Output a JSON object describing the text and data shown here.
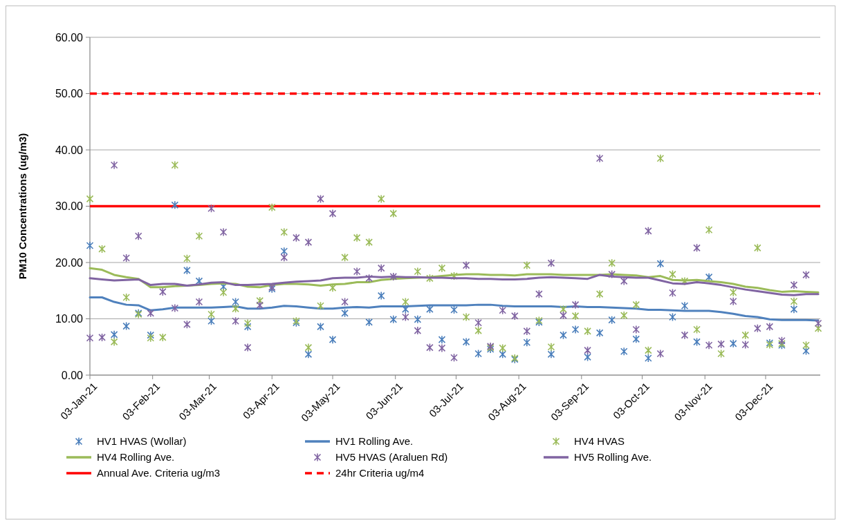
{
  "chart_data": {
    "type": "scatter",
    "ylabel": "PM10 Concentrations (ug/m3)",
    "x": [
      "2021-01-03",
      "2021-01-09",
      "2021-01-15",
      "2021-01-21",
      "2021-01-27",
      "2021-02-02",
      "2021-02-08",
      "2021-02-14",
      "2021-02-20",
      "2021-02-26",
      "2021-03-04",
      "2021-03-10",
      "2021-03-16",
      "2021-03-22",
      "2021-03-28",
      "2021-04-03",
      "2021-04-09",
      "2021-04-15",
      "2021-04-21",
      "2021-04-27",
      "2021-05-03",
      "2021-05-09",
      "2021-05-15",
      "2021-05-21",
      "2021-05-27",
      "2021-06-02",
      "2021-06-08",
      "2021-06-14",
      "2021-06-20",
      "2021-06-26",
      "2021-07-02",
      "2021-07-08",
      "2021-07-14",
      "2021-07-20",
      "2021-07-26",
      "2021-08-01",
      "2021-08-07",
      "2021-08-13",
      "2021-08-19",
      "2021-08-25",
      "2021-08-31",
      "2021-09-06",
      "2021-09-12",
      "2021-09-18",
      "2021-09-24",
      "2021-09-30",
      "2021-10-06",
      "2021-10-12",
      "2021-10-18",
      "2021-10-24",
      "2021-10-30",
      "2021-11-05",
      "2021-11-11",
      "2021-11-17",
      "2021-11-23",
      "2021-11-29",
      "2021-12-05",
      "2021-12-11",
      "2021-12-17",
      "2021-12-23",
      "2021-12-29"
    ],
    "series": [
      {
        "name": "HV1 HVAS (Wollar)",
        "marker": "cross",
        "color": "#4a7ebb",
        "values": [
          23.0,
          null,
          7.2,
          8.7,
          11.0,
          7.1,
          null,
          30.2,
          18.6,
          16.7,
          9.6,
          15.7,
          13.0,
          8.6,
          null,
          15.3,
          22.0,
          9.3,
          3.7,
          8.6,
          6.3,
          11.0,
          null,
          9.4,
          14.1,
          9.9,
          11.7,
          9.9,
          11.7,
          6.3,
          11.6,
          5.9,
          3.8,
          4.6,
          3.7,
          2.8,
          5.8,
          9.4,
          3.7,
          7.1,
          8.1,
          3.2,
          7.5,
          9.8,
          4.2,
          6.4,
          3.0,
          19.8,
          10.3,
          12.3,
          5.9,
          17.4,
          null,
          5.6,
          null,
          null,
          5.7,
          5.3,
          11.7,
          4.3,
          null
        ]
      },
      {
        "name": "HV1 Rolling Ave.",
        "type": "line",
        "marker": "none",
        "color": "#4f81bd",
        "values": [
          13.8,
          13.8,
          13.0,
          12.5,
          12.4,
          11.5,
          11.7,
          12.0,
          12.0,
          12.0,
          12.0,
          12.1,
          12.2,
          11.8,
          11.8,
          12.0,
          12.3,
          12.2,
          12.0,
          11.8,
          11.8,
          12.0,
          12.1,
          12.0,
          12.2,
          12.2,
          12.2,
          12.3,
          12.4,
          12.4,
          12.4,
          12.4,
          12.5,
          12.5,
          12.3,
          12.2,
          12.2,
          12.2,
          12.2,
          12.1,
          12.2,
          12.1,
          12.1,
          12.0,
          11.9,
          11.8,
          11.6,
          11.6,
          11.5,
          11.4,
          11.4,
          11.4,
          11.2,
          10.9,
          10.5,
          10.3,
          9.9,
          9.8,
          9.8,
          9.8,
          9.7
        ]
      },
      {
        "name": "HV4 HVAS",
        "marker": "cross",
        "color": "#9bbb59",
        "values": [
          31.3,
          22.4,
          5.9,
          13.8,
          10.8,
          6.6,
          6.7,
          37.3,
          20.7,
          24.7,
          10.8,
          14.7,
          11.8,
          9.2,
          13.2,
          29.8,
          25.4,
          9.6,
          4.9,
          12.3,
          15.5,
          20.9,
          24.4,
          23.6,
          31.3,
          28.7,
          13.0,
          18.4,
          17.2,
          19.0,
          17.6,
          10.3,
          7.9,
          4.9,
          4.8,
          3.0,
          19.5,
          9.7,
          5.0,
          11.7,
          10.5,
          7.8,
          14.4,
          19.9,
          10.6,
          12.5,
          4.4,
          38.5,
          17.9,
          16.7,
          8.1,
          25.8,
          3.8,
          14.7,
          7.1,
          22.6,
          5.4,
          5.6,
          13.1,
          5.3,
          8.3
        ]
      },
      {
        "name": "HV4 Rolling Ave.",
        "type": "line",
        "marker": "none",
        "color": "#9bbb59",
        "values": [
          19.0,
          18.7,
          17.8,
          17.4,
          17.1,
          15.6,
          15.6,
          15.8,
          15.9,
          16.0,
          16.2,
          16.3,
          16.2,
          15.7,
          15.6,
          16.0,
          16.2,
          16.2,
          16.1,
          15.9,
          16.1,
          16.2,
          16.5,
          16.5,
          16.9,
          17.1,
          17.2,
          17.3,
          17.4,
          17.6,
          17.8,
          17.9,
          17.9,
          17.8,
          17.8,
          17.7,
          17.9,
          17.9,
          17.9,
          17.8,
          17.8,
          17.8,
          17.8,
          17.9,
          17.8,
          17.7,
          17.4,
          17.6,
          16.9,
          16.8,
          16.9,
          16.7,
          16.5,
          16.2,
          15.7,
          15.5,
          15.1,
          14.8,
          14.9,
          14.8,
          14.7
        ]
      },
      {
        "name": "HV5 HVAS (Araluen Rd)",
        "marker": "cross",
        "color": "#8064a2",
        "values": [
          6.6,
          6.7,
          37.3,
          20.8,
          24.7,
          11.0,
          14.8,
          11.9,
          9.0,
          13.0,
          29.6,
          25.4,
          9.6,
          4.9,
          12.4,
          15.6,
          20.9,
          24.4,
          23.6,
          31.3,
          28.7,
          13.0,
          18.4,
          17.2,
          19.0,
          17.5,
          10.3,
          7.9,
          4.9,
          4.8,
          3.1,
          19.5,
          9.3,
          5.1,
          11.5,
          10.5,
          7.8,
          14.4,
          19.9,
          10.6,
          12.5,
          4.4,
          38.5,
          17.9,
          16.7,
          8.1,
          25.6,
          3.8,
          14.6,
          7.1,
          22.6,
          5.3,
          5.5,
          13.1,
          5.4,
          8.3,
          8.6,
          6.1,
          16.0,
          17.8,
          9.2
        ]
      },
      {
        "name": "HV5 Rolling Ave.",
        "type": "line",
        "marker": "none",
        "color": "#8064a2",
        "values": [
          17.2,
          17.0,
          16.8,
          16.9,
          17.0,
          16.0,
          16.2,
          16.2,
          15.9,
          16.1,
          16.4,
          16.5,
          16.0,
          16.0,
          16.1,
          16.2,
          16.4,
          16.6,
          16.7,
          16.8,
          17.2,
          17.3,
          17.3,
          17.5,
          17.4,
          17.5,
          17.4,
          17.4,
          17.3,
          17.3,
          17.2,
          17.2,
          17.1,
          17.1,
          17.0,
          17.0,
          17.1,
          17.3,
          17.4,
          17.3,
          17.2,
          17.1,
          17.8,
          17.5,
          17.4,
          17.3,
          17.3,
          16.8,
          16.3,
          16.2,
          16.5,
          16.3,
          16.0,
          15.6,
          15.2,
          14.9,
          14.6,
          14.3,
          14.2,
          14.4,
          14.4
        ]
      }
    ],
    "ref_lines": [
      {
        "axis": "y",
        "value": 30,
        "label": "Annual Ave. Criteria ug/m3",
        "color": "#ff0000",
        "line_style": "solid"
      },
      {
        "axis": "y",
        "value": 50,
        "label": "24hr Criteria ug/m4",
        "color": "#ff0000",
        "line_style": "dashed"
      }
    ],
    "xlim": [
      "2021-01-03",
      "2021-12-30"
    ],
    "xticks": [
      {
        "value": "2021-01-03",
        "label": "03-Jan-21"
      },
      {
        "value": "2021-02-03",
        "label": "03-Feb-21"
      },
      {
        "value": "2021-03-03",
        "label": "03-Mar-21"
      },
      {
        "value": "2021-04-03",
        "label": "03-Apr-21"
      },
      {
        "value": "2021-05-03",
        "label": "03-May-21"
      },
      {
        "value": "2021-06-03",
        "label": "03-Jun-21"
      },
      {
        "value": "2021-07-03",
        "label": "03-Jul-21"
      },
      {
        "value": "2021-08-03",
        "label": "03-Aug-21"
      },
      {
        "value": "2021-09-03",
        "label": "03-Sep-21"
      },
      {
        "value": "2021-10-03",
        "label": "03-Oct-21"
      },
      {
        "value": "2021-11-03",
        "label": "03-Nov-21"
      },
      {
        "value": "2021-12-03",
        "label": "03-Dec-21"
      }
    ],
    "ylim": [
      0,
      60
    ],
    "yticks": [
      {
        "value": 0,
        "label": "0.00"
      },
      {
        "value": 10,
        "label": "10.00"
      },
      {
        "value": 20,
        "label": "20.00"
      },
      {
        "value": 30,
        "label": "30.00"
      },
      {
        "value": 40,
        "label": "40.00"
      },
      {
        "value": 50,
        "label": "50.00"
      },
      {
        "value": 60,
        "label": "60.00"
      }
    ],
    "grid": "y",
    "legend": "bottom"
  }
}
